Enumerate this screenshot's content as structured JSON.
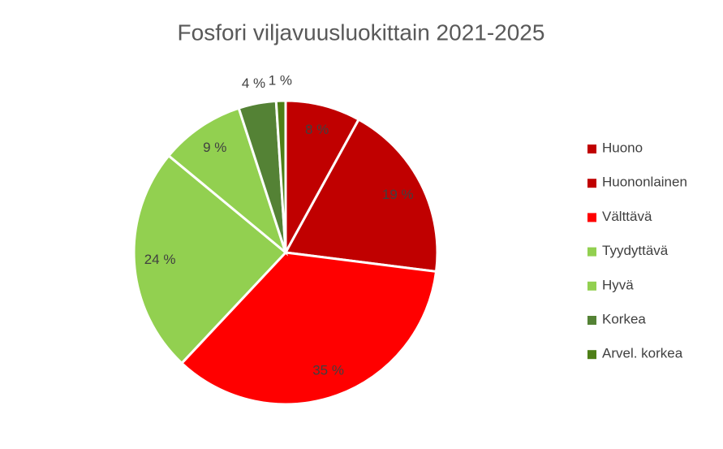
{
  "chart_data": {
    "type": "pie",
    "title": "Fosfori viljavuusluokittain 2021-2025",
    "categories": [
      "Huono",
      "Huononlainen",
      "Välttävä",
      "Tyydyttävä",
      "Hyvä",
      "Korkea",
      "Arvel. korkea"
    ],
    "values": [
      8,
      19,
      35,
      24,
      9,
      4,
      1
    ],
    "value_labels": [
      "8 %",
      "19 %",
      "35 %",
      "24 %",
      "9 %",
      "4 %",
      "1 %"
    ],
    "colors": [
      "#C00000",
      "#C00000",
      "#FF0000",
      "#92D050",
      "#92D050",
      "#548235",
      "#4E7F17"
    ],
    "legend": "right"
  }
}
